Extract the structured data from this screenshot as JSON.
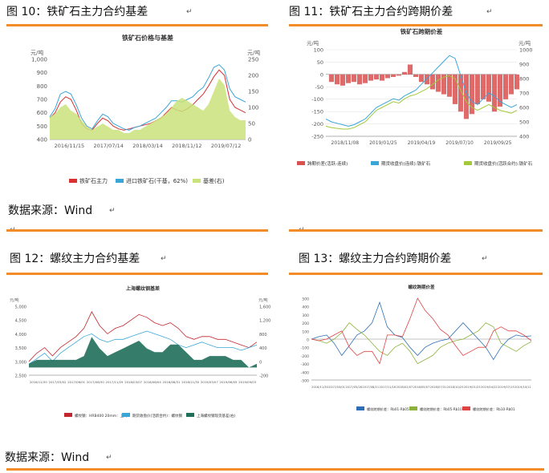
{
  "figures": [
    {
      "title": "图 10：铁矿石主力合约基差"
    },
    {
      "title": "图 11：铁矿石主力合约跨期价差"
    },
    {
      "title": "图 12：螺纹主力合约基差"
    },
    {
      "title": "图 13：螺纹主力合约跨期价差"
    }
  ],
  "sources": [
    "数据来源：Wind",
    "数据来源：Wind"
  ],
  "para_marks": [
    "↵",
    "↵",
    "↵",
    "↵",
    "↵",
    "↵",
    "↵",
    "↵"
  ],
  "chart_data": [
    {
      "type": "line",
      "title": "铁矿石价格与基差",
      "ylabel_left": "元/吨",
      "ylabel_right": "元/吨",
      "ylim_left": [
        400,
        1000
      ],
      "ylim_right": [
        0,
        250
      ],
      "yticks_left": [
        "1,000",
        "900",
        "800",
        "700",
        "600",
        "500",
        "400"
      ],
      "yticks_right": [
        "250",
        "200",
        "150",
        "100",
        "50",
        "0"
      ],
      "x_ticks": [
        "2016/11/15",
        "2017/07/14",
        "2018/03/14",
        "2018/11/12",
        "2019/07/12"
      ],
      "grid": false,
      "legend": "bottom",
      "series": [
        {
          "name": "铁矿石主力",
          "axis": "left",
          "color": "#d93030",
          "values": [
            560,
            600,
            680,
            720,
            700,
            620,
            520,
            480,
            470,
            520,
            560,
            540,
            500,
            480,
            470,
            480,
            490,
            500,
            510,
            520,
            540,
            560,
            600,
            640,
            620,
            610,
            630,
            660,
            700,
            740,
            800,
            870,
            920,
            880,
            700,
            640,
            620,
            600
          ]
        },
        {
          "name": "进口铁矿石(干基，62%)",
          "axis": "left",
          "color": "#3aa6d8",
          "values": [
            570,
            630,
            740,
            760,
            740,
            660,
            560,
            500,
            480,
            540,
            590,
            570,
            520,
            500,
            480,
            470,
            490,
            500,
            520,
            540,
            560,
            600,
            640,
            690,
            690,
            680,
            700,
            720,
            760,
            790,
            860,
            940,
            960,
            920,
            780,
            720,
            700,
            680
          ]
        },
        {
          "name": "基差(右)",
          "axis": "right",
          "color": "#c9e27a",
          "values": [
            70,
            80,
            100,
            110,
            90,
            80,
            60,
            40,
            30,
            40,
            50,
            40,
            30,
            30,
            20,
            20,
            30,
            30,
            40,
            50,
            60,
            70,
            80,
            100,
            120,
            130,
            120,
            110,
            100,
            90,
            110,
            150,
            190,
            170,
            90,
            70,
            60,
            60
          ]
        }
      ]
    },
    {
      "type": "line",
      "title": "铁矿石跨期价差",
      "ylabel_left": "元/吨",
      "ylabel_right": "元/吨",
      "ylim_left": [
        -250,
        100
      ],
      "ylim_right": [
        400,
        1000
      ],
      "yticks_left": [
        "100",
        "50",
        "0",
        "-50",
        "-100",
        "-150",
        "-200",
        "-250"
      ],
      "yticks_right": [
        "1000",
        "900",
        "800",
        "700",
        "600",
        "500",
        "400"
      ],
      "x_ticks": [
        "2018/11/08",
        "2019/01/25",
        "2019/04/19",
        "2019/07/10",
        "2019/09/25"
      ],
      "grid": true,
      "legend": "bottom",
      "series": [
        {
          "name": "跨期价差(活跃-连续)",
          "axis": "left",
          "color": "#d95050",
          "values": [
            0,
            -30,
            -40,
            -45,
            -35,
            -30,
            -40,
            -35,
            -25,
            -20,
            -25,
            -15,
            -10,
            -5,
            10,
            40,
            -10,
            -30,
            -40,
            -60,
            -70,
            -80,
            -90,
            -120,
            -150,
            -180,
            -160,
            -120,
            -100,
            -110,
            -150,
            -130,
            -100,
            -80,
            -60
          ]
        },
        {
          "name": "期货收盘价(连续):铁矿石",
          "axis": "right",
          "color": "#3aa6d8",
          "values": [
            520,
            500,
            490,
            480,
            470,
            480,
            500,
            520,
            560,
            600,
            620,
            640,
            660,
            650,
            680,
            700,
            720,
            760,
            800,
            840,
            880,
            920,
            960,
            940,
            820,
            700,
            640,
            620,
            660,
            700,
            680,
            640,
            620,
            600,
            620
          ]
        },
        {
          "name": "期货收盘价(活跃合约):铁矿石",
          "axis": "right",
          "color": "#a3c93a",
          "values": [
            470,
            460,
            455,
            450,
            450,
            460,
            480,
            500,
            540,
            580,
            600,
            620,
            640,
            630,
            660,
            680,
            690,
            710,
            730,
            760,
            790,
            810,
            820,
            800,
            720,
            640,
            600,
            580,
            600,
            620,
            600,
            580,
            570,
            560,
            580
          ]
        }
      ]
    },
    {
      "type": "area",
      "title": "上海螺纹钢基差",
      "ylabel_left": "元/吨",
      "ylabel_right": "元/吨",
      "ylim_left": [
        2500,
        5000
      ],
      "ylim_right": [
        -200,
        1600
      ],
      "yticks_left": [
        "5,000",
        "4,500",
        "4,000",
        "3,500",
        "3,000",
        "2,500"
      ],
      "yticks_right": [
        "1,600",
        "1,200",
        "800",
        "400",
        "0",
        "-200"
      ],
      "x_ticks": [
        "2016/11/30",
        "2017/03/02",
        "2017/06/01",
        "2017/08/30",
        "2017/11/29",
        "2018/03/07",
        "2018/06/04",
        "2018/08/31",
        "2018/11/30",
        "2019/03/07",
        "2019/06/05",
        "2019/09/03"
      ],
      "grid": false,
      "legend": "bottom",
      "series": [
        {
          "name": "螺纹钢：HRB400 20mm：上海",
          "axis": "left",
          "color": "#c0282e",
          "values": [
            3000,
            3300,
            3500,
            3200,
            3500,
            3700,
            3900,
            4200,
            4800,
            4300,
            4000,
            4200,
            4300,
            4500,
            4700,
            4600,
            4400,
            4300,
            4400,
            4200,
            3900,
            3800,
            3900,
            3900,
            3800,
            3800,
            3700,
            3600,
            3500,
            3700
          ]
        },
        {
          "name": "期货收盘价(活跃合约)：螺纹钢",
          "axis": "left",
          "color": "#3aa6d8",
          "values": [
            2900,
            3100,
            3300,
            3000,
            3300,
            3500,
            3700,
            3900,
            4000,
            3800,
            3700,
            3800,
            3800,
            3900,
            4000,
            4100,
            4000,
            3900,
            3800,
            3600,
            3500,
            3600,
            3700,
            3600,
            3500,
            3500,
            3500,
            3400,
            3500,
            3600
          ]
        },
        {
          "name": "上海螺纹钢现货基差(右)",
          "axis": "right",
          "color": "#1f6f5a",
          "values": [
            100,
            200,
            200,
            200,
            200,
            200,
            200,
            300,
            800,
            500,
            300,
            400,
            500,
            600,
            700,
            500,
            400,
            400,
            600,
            600,
            400,
            200,
            200,
            300,
            300,
            300,
            200,
            200,
            0,
            100
          ]
        }
      ]
    },
    {
      "type": "line",
      "title": "螺纹跨期价差",
      "ylim": [
        -500,
        500
      ],
      "yticks": [
        "500",
        "400",
        "300",
        "200",
        "100",
        "0",
        "-100",
        "-200",
        "-300",
        "-400",
        "-500"
      ],
      "x_ticks": [
        "2016/11/30",
        "2017/03/01",
        "2017/05/26",
        "2017/08/21",
        "2017/11/16",
        "2018/02/07",
        "2018/05/07",
        "2018/07/31",
        "2018/10/25",
        "2019/01/23",
        "2019/04/22",
        "2019/07/15",
        "2019/10/11"
      ],
      "grid": false,
      "legend": "bottom",
      "series": [
        {
          "name": "螺纹跨期价差：Rb01-Rb05",
          "color": "#2d6fb6",
          "values": [
            0,
            30,
            50,
            -50,
            -200,
            -80,
            50,
            100,
            200,
            450,
            150,
            50,
            20,
            -100,
            -200,
            -100,
            -50,
            -20,
            0,
            100,
            200,
            100,
            0,
            -100,
            -250,
            -100,
            0,
            50,
            30,
            40
          ]
        },
        {
          "name": "螺纹跨期价差：Rb05-Rb10",
          "color": "#8db23b",
          "values": [
            0,
            -20,
            -50,
            0,
            80,
            200,
            120,
            50,
            -50,
            -150,
            -200,
            -100,
            -50,
            -150,
            -300,
            -250,
            -200,
            -100,
            -50,
            -20,
            0,
            50,
            100,
            200,
            150,
            -50,
            -100,
            -150,
            -80,
            -30
          ]
        },
        {
          "name": "螺纹跨期价差：Rb10-Rb01",
          "color": "#e04343",
          "values": [
            0,
            -20,
            0,
            50,
            100,
            -100,
            -200,
            -150,
            -150,
            -300,
            50,
            50,
            30,
            250,
            500,
            350,
            250,
            120,
            50,
            -80,
            -200,
            -150,
            -100,
            -100,
            100,
            150,
            100,
            100,
            50,
            -20
          ]
        }
      ]
    }
  ]
}
